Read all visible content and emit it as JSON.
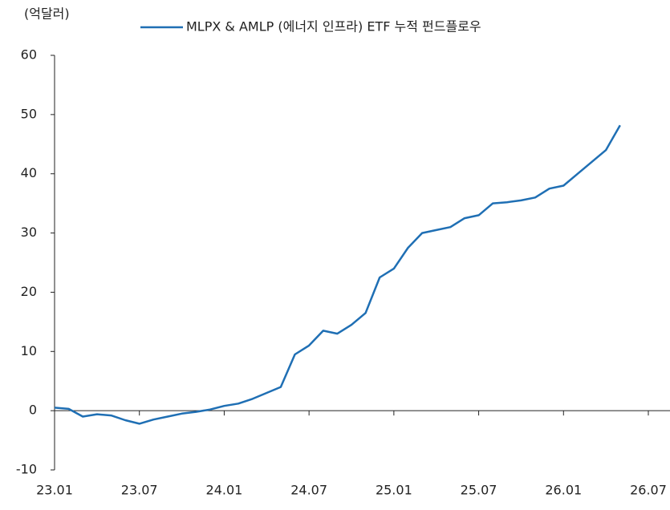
{
  "chart_data": {
    "type": "line",
    "y_label": "(억달러)",
    "x": [
      "23.01",
      "23.02",
      "23.03",
      "23.04",
      "23.05",
      "23.06",
      "23.07",
      "23.08",
      "23.09",
      "23.10",
      "23.11",
      "23.12",
      "24.01",
      "24.02",
      "24.03",
      "24.04",
      "24.05",
      "24.06",
      "24.07",
      "24.08",
      "24.09",
      "24.10",
      "24.11",
      "24.12",
      "25.01",
      "25.02",
      "25.03",
      "25.04",
      "25.05",
      "25.06",
      "25.07",
      "25.08",
      "25.09",
      "25.10",
      "25.11",
      "25.12",
      "26.01",
      "26.02",
      "26.03",
      "26.04",
      "26.05"
    ],
    "series": [
      {
        "name": "MLPX & AMLP (에너지 인프라) ETF 누적 펀드플로우",
        "color": "#1f6fb4",
        "values": [
          0.5,
          0.3,
          -1.0,
          -0.6,
          -0.8,
          -1.6,
          -2.2,
          -1.5,
          -1.0,
          -0.5,
          -0.2,
          0.2,
          0.8,
          1.2,
          2.0,
          3.0,
          4.0,
          9.5,
          11,
          13.5,
          13,
          14.5,
          16.5,
          22.5,
          24,
          27.5,
          30,
          30.5,
          31,
          32.5,
          33,
          35,
          35.2,
          35.5,
          36,
          37.5,
          38,
          40,
          42,
          44,
          48.2
        ]
      }
    ],
    "xlim": [
      "23.01",
      "26.07"
    ],
    "xticks": [
      "23.01",
      "23.07",
      "24.01",
      "24.07",
      "25.01",
      "25.07",
      "26.01",
      "26.07"
    ],
    "ylim": [
      -10,
      60
    ],
    "yticks": [
      -10,
      0,
      10,
      20,
      30,
      40,
      50,
      60
    ],
    "legend": "top"
  }
}
